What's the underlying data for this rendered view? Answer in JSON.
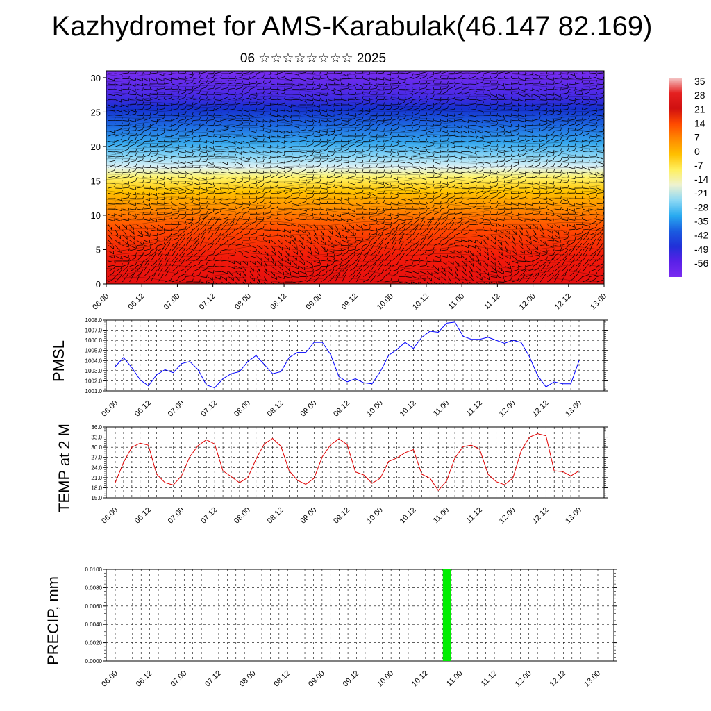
{
  "title": "Kazhydromet for AMS-Karabulak(46.147 82.169)",
  "subtitle": "06 ☆☆☆☆☆☆☆☆ 2025",
  "chart_data": [
    {
      "type": "heatmap",
      "name": "temperature-wind-cross-section",
      "x_ticks": [
        "06.00",
        "06.12",
        "07.00",
        "07.12",
        "08.00",
        "08.12",
        "09.00",
        "09.12",
        "10.00",
        "10.12",
        "11.00",
        "11.12",
        "12.00",
        "12.12",
        "13.00"
      ],
      "y_ticks": [
        0,
        5,
        10,
        15,
        20,
        25,
        30
      ],
      "ylim": [
        0,
        31
      ],
      "colorbar": {
        "labels": [
          "35",
          "28",
          "21",
          "14",
          "7",
          "0",
          "-7",
          "-14",
          "-21",
          "-28",
          "-35",
          "-42",
          "-49",
          "-56"
        ],
        "colors": [
          "#f4c8c8",
          "#e52020",
          "#d01010",
          "#ff4a00",
          "#ff8a00",
          "#ffc000",
          "#fff060",
          "#eef2d0",
          "#8cd8f4",
          "#28aaf0",
          "#1a5ce0",
          "#2030d8",
          "#5a20e8",
          "#7a2cf0"
        ]
      },
      "layers": [
        {
          "altitude": 0,
          "color": "#e50f0f"
        },
        {
          "altitude": 4,
          "color": "#f21a0a"
        },
        {
          "altitude": 8,
          "color": "#ff4a00"
        },
        {
          "altitude": 11,
          "color": "#ff8c00"
        },
        {
          "altitude": 13.5,
          "color": "#ffc400"
        },
        {
          "altitude": 15.5,
          "color": "#fff36a"
        },
        {
          "altitude": 17,
          "color": "#dff2f5"
        },
        {
          "altitude": 18.5,
          "color": "#8ed8f6"
        },
        {
          "altitude": 20.5,
          "color": "#36a8ee"
        },
        {
          "altitude": 23,
          "color": "#1d6ae2"
        },
        {
          "altitude": 25.5,
          "color": "#1530d0"
        },
        {
          "altitude": 27.5,
          "color": "#4a2ae6"
        },
        {
          "altitude": 31,
          "color": "#7a2cf0"
        }
      ]
    },
    {
      "type": "line",
      "name": "pmsl",
      "ylabel": "PMSL",
      "ylim": [
        1001.0,
        1008.0
      ],
      "y_ticks": [
        "1001.0",
        "1002.0",
        "1003.0",
        "1004.0",
        "1005.0",
        "1006.0",
        "1007.0",
        "1008.0"
      ],
      "x_ticks": [
        "06.00",
        "06.12",
        "07.00",
        "07.12",
        "08.00",
        "08.12",
        "09.00",
        "09.12",
        "10.00",
        "10.12",
        "11.00",
        "11.12",
        "12.00",
        "12.12",
        "13.00"
      ],
      "color": "#0000ff",
      "values": [
        1003.4,
        1004.3,
        1003.3,
        1002.1,
        1001.5,
        1002.6,
        1003.1,
        1002.8,
        1003.7,
        1003.9,
        1003.1,
        1001.6,
        1001.3,
        1002.2,
        1002.7,
        1002.9,
        1003.9,
        1004.5,
        1003.6,
        1002.7,
        1002.9,
        1004.3,
        1004.8,
        1004.8,
        1005.8,
        1005.8,
        1004.6,
        1002.4,
        1001.9,
        1002.2,
        1001.8,
        1001.7,
        1002.9,
        1004.5,
        1005.1,
        1005.8,
        1005.2,
        1006.3,
        1006.9,
        1006.8,
        1007.7,
        1007.8,
        1006.4,
        1006.1,
        1006.1,
        1006.3,
        1006.0,
        1005.7,
        1006.0,
        1005.8,
        1004.4,
        1002.5,
        1001.4,
        1001.9,
        1001.7,
        1001.7,
        1004.0
      ]
    },
    {
      "type": "line",
      "name": "temp-2m",
      "ylabel": "TEMP at 2 M",
      "ylim": [
        15.0,
        36.0
      ],
      "y_ticks": [
        "15.0",
        "18.0",
        "21.0",
        "24.0",
        "27.0",
        "30.0",
        "33.0",
        "36.0"
      ],
      "x_ticks": [
        "06.00",
        "06.12",
        "07.00",
        "07.12",
        "08.00",
        "08.12",
        "09.00",
        "09.12",
        "10.00",
        "10.12",
        "11.00",
        "11.12",
        "12.00",
        "12.12",
        "13.00"
      ],
      "color": "#e00000",
      "values": [
        19.5,
        25.5,
        30.0,
        31.2,
        30.6,
        22.0,
        19.5,
        18.8,
        21.5,
        27.2,
        30.5,
        32.2,
        31.0,
        23.0,
        21.3,
        19.5,
        21.0,
        26.5,
        31.0,
        32.6,
        30.3,
        23.0,
        20.2,
        19.0,
        20.8,
        27.2,
        30.7,
        32.5,
        30.8,
        22.7,
        21.8,
        19.3,
        20.8,
        25.8,
        26.8,
        28.4,
        29.3,
        22.0,
        20.8,
        17.2,
        20.0,
        26.8,
        30.2,
        30.6,
        29.4,
        22.0,
        19.8,
        18.9,
        20.8,
        28.9,
        33.0,
        34.0,
        33.4,
        23.0,
        22.8,
        21.5,
        23.0
      ]
    },
    {
      "type": "bar",
      "name": "precip",
      "ylabel": "PRECIP, mm",
      "ylim": [
        0.0,
        0.01
      ],
      "y_ticks": [
        "0.0000",
        "0.0020",
        "0.0040",
        "0.0060",
        "0.0080",
        "0.0100"
      ],
      "x_ticks": [
        "06.00",
        "06.12",
        "07.00",
        "07.12",
        "08.00",
        "08.12",
        "09.00",
        "09.12",
        "10.00",
        "10.12",
        "11.00",
        "11.12",
        "12.00",
        "12.12",
        "13.00"
      ],
      "color": "#00ee00",
      "bars": [
        {
          "at_step": 38.5,
          "value": 0.01
        }
      ]
    }
  ]
}
